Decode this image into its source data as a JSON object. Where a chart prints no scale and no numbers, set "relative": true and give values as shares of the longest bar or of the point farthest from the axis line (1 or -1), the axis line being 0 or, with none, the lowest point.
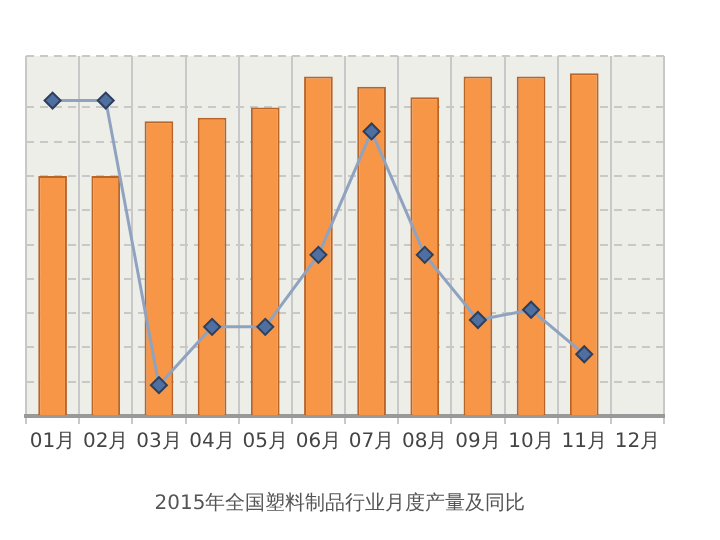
{
  "chart_data": {
    "type": "bar",
    "title": "2015年全国塑料制品行业月度产量及同比",
    "relative": true,
    "categories": [
      "01月",
      "02月",
      "03月",
      "04月",
      "05月",
      "06月",
      "07月",
      "08月",
      "09月",
      "10月",
      "11月",
      "12月"
    ],
    "series": [
      {
        "color": "#f79646",
        "values": [
          0.7,
          0.7,
          0.86,
          0.87,
          0.9,
          0.99,
          0.96,
          0.93,
          0.99,
          0.99,
          1.0,
          null
        ]
      },
      {
        "type": "line",
        "color": "#8fa3c0",
        "marker": "diamond",
        "values": [
          0.92,
          0.92,
          0.09,
          0.26,
          0.26,
          0.47,
          0.83,
          0.47,
          0.28,
          0.31,
          0.18,
          null
        ]
      }
    ],
    "grid": true,
    "legend": false
  }
}
